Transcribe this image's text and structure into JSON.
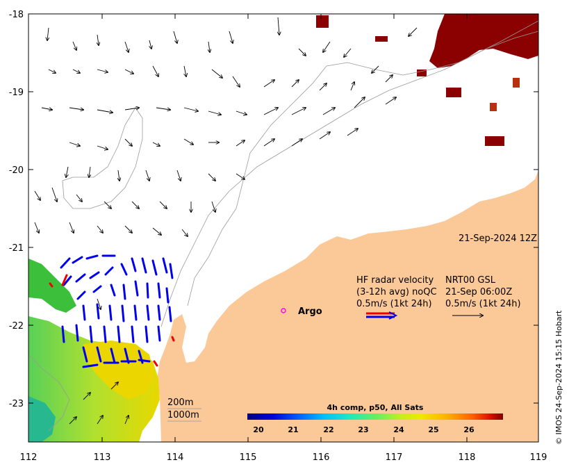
{
  "map": {
    "date_label": "21-Sep-2024 12Z",
    "credit": "© IMOS 24-Sep-2024 15:15 Hobart",
    "argo_label": "Argo",
    "lon_ticks": [
      "112",
      "113",
      "114",
      "115",
      "116",
      "117",
      "118",
      "119"
    ],
    "lat_ticks": [
      "-18",
      "-19",
      "-20",
      "-21",
      "-22",
      "-23"
    ],
    "legend": {
      "hf_title": "HF radar velocity",
      "hf_sub": "(3-12h avg) noQC",
      "hf_scale": "0.5m/s (1kt 24h)",
      "gsl_title": "NRT00 GSL",
      "gsl_date": "21-Sep 06:00Z",
      "gsl_scale": "0.5m/s (1kt 24h)"
    },
    "isobaths": [
      "200m",
      "1000m"
    ],
    "colorbar": {
      "title": "4h comp, p50, All Sats",
      "ticks": [
        "20",
        "21",
        "22",
        "23",
        "24",
        "25",
        "26"
      ],
      "colors": [
        "#00007f",
        "#0000c8",
        "#0020ff",
        "#0070ff",
        "#00b8ff",
        "#10f0e8",
        "#40ff b8",
        "#80ff80",
        "#b8ff40",
        "#f0ff10",
        "#ffc000",
        "#ff8000",
        "#ff4000",
        "#e00000",
        "#7f0000"
      ]
    },
    "colors": {
      "land": "#fbc898",
      "hf_arrow": "#0000ee",
      "hf_arrow_red": "#ee0000",
      "argo": "#ff00ff",
      "sst_warm": "#8b0000"
    }
  }
}
